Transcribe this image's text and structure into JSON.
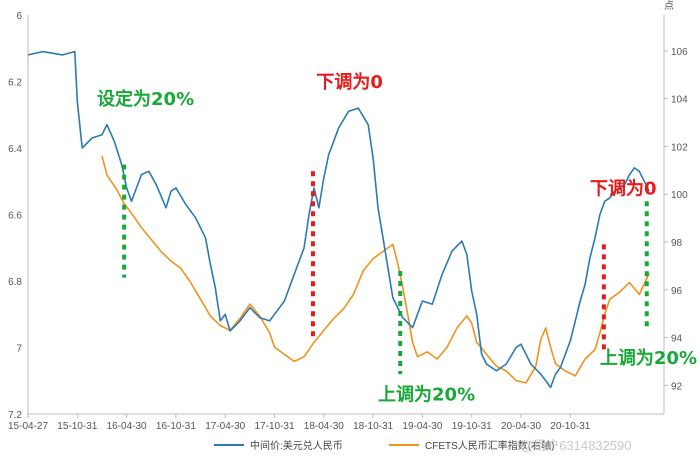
{
  "chart_data": {
    "type": "line",
    "y_left_ticks": [
      "6",
      "6.2",
      "6.4",
      "6.6",
      "6.8",
      "7",
      "7.2"
    ],
    "y_left_range": [
      6.0,
      7.2
    ],
    "y_left_inverted": true,
    "y_right_unit": "点",
    "y_right_ticks": [
      "106",
      "104",
      "102",
      "100",
      "98",
      "96",
      "94",
      "92"
    ],
    "y_right_range": [
      90.8,
      107.5
    ],
    "x_ticks": [
      "15-04-27",
      "15-10-31",
      "16-04-30",
      "16-10-31",
      "17-04-30",
      "17-10-31",
      "18-04-30",
      "18-10-31",
      "19-04-30",
      "19-10-31",
      "20-04-30",
      "20-10-31"
    ],
    "x_range": [
      0,
      12.9
    ],
    "grid": false,
    "legend_position": "bottom",
    "series": [
      {
        "name": "中间价:美元兑人民币",
        "axis": "left",
        "color": "#2c7ab0",
        "points": [
          [
            0,
            6.12
          ],
          [
            0.3,
            6.11
          ],
          [
            0.7,
            6.12
          ],
          [
            0.95,
            6.11
          ],
          [
            1.0,
            6.26
          ],
          [
            1.1,
            6.4
          ],
          [
            1.3,
            6.37
          ],
          [
            1.5,
            6.36
          ],
          [
            1.6,
            6.33
          ],
          [
            1.75,
            6.38
          ],
          [
            1.9,
            6.45
          ],
          [
            2.0,
            6.52
          ],
          [
            2.1,
            6.56
          ],
          [
            2.2,
            6.52
          ],
          [
            2.3,
            6.48
          ],
          [
            2.45,
            6.47
          ],
          [
            2.6,
            6.51
          ],
          [
            2.8,
            6.58
          ],
          [
            2.9,
            6.53
          ],
          [
            3.0,
            6.52
          ],
          [
            3.2,
            6.57
          ],
          [
            3.4,
            6.61
          ],
          [
            3.6,
            6.67
          ],
          [
            3.7,
            6.75
          ],
          [
            3.8,
            6.82
          ],
          [
            3.9,
            6.92
          ],
          [
            4.0,
            6.9
          ],
          [
            4.1,
            6.95
          ],
          [
            4.3,
            6.92
          ],
          [
            4.5,
            6.88
          ],
          [
            4.7,
            6.91
          ],
          [
            4.9,
            6.92
          ],
          [
            5.0,
            6.9
          ],
          [
            5.2,
            6.86
          ],
          [
            5.4,
            6.78
          ],
          [
            5.6,
            6.7
          ],
          [
            5.7,
            6.6
          ],
          [
            5.8,
            6.52
          ],
          [
            5.9,
            6.58
          ],
          [
            6.0,
            6.49
          ],
          [
            6.1,
            6.42
          ],
          [
            6.2,
            6.38
          ],
          [
            6.3,
            6.34
          ],
          [
            6.5,
            6.29
          ],
          [
            6.7,
            6.28
          ],
          [
            6.9,
            6.33
          ],
          [
            7.0,
            6.43
          ],
          [
            7.1,
            6.58
          ],
          [
            7.2,
            6.67
          ],
          [
            7.3,
            6.76
          ],
          [
            7.4,
            6.85
          ],
          [
            7.6,
            6.91
          ],
          [
            7.8,
            6.94
          ],
          [
            7.9,
            6.9
          ],
          [
            8.0,
            6.86
          ],
          [
            8.2,
            6.87
          ],
          [
            8.4,
            6.78
          ],
          [
            8.6,
            6.71
          ],
          [
            8.8,
            6.68
          ],
          [
            8.9,
            6.72
          ],
          [
            9.0,
            6.83
          ],
          [
            9.1,
            6.9
          ],
          [
            9.2,
            7.02
          ],
          [
            9.3,
            7.05
          ],
          [
            9.5,
            7.07
          ],
          [
            9.7,
            7.05
          ],
          [
            9.9,
            7.0
          ],
          [
            10.0,
            6.99
          ],
          [
            10.2,
            7.05
          ],
          [
            10.4,
            7.08
          ],
          [
            10.5,
            7.1
          ],
          [
            10.6,
            7.12
          ],
          [
            10.7,
            7.08
          ],
          [
            10.8,
            7.06
          ],
          [
            10.9,
            7.02
          ],
          [
            11.0,
            6.98
          ],
          [
            11.1,
            6.92
          ],
          [
            11.2,
            6.86
          ],
          [
            11.3,
            6.81
          ],
          [
            11.4,
            6.73
          ],
          [
            11.5,
            6.67
          ],
          [
            11.6,
            6.6
          ],
          [
            11.7,
            6.56
          ],
          [
            11.8,
            6.55
          ],
          [
            11.9,
            6.53
          ],
          [
            12.0,
            6.52
          ],
          [
            12.1,
            6.51
          ],
          [
            12.2,
            6.48
          ],
          [
            12.3,
            6.46
          ],
          [
            12.4,
            6.47
          ],
          [
            12.5,
            6.5
          ],
          [
            12.6,
            6.53
          ]
        ]
      },
      {
        "name": "CFETS人民币汇率指数(右轴)",
        "axis": "right",
        "color": "#f0921e",
        "points": [
          [
            1.5,
            101.6
          ],
          [
            1.6,
            100.8
          ],
          [
            1.8,
            100.2
          ],
          [
            1.95,
            99.6
          ],
          [
            2.1,
            99.2
          ],
          [
            2.3,
            98.6
          ],
          [
            2.5,
            98.1
          ],
          [
            2.7,
            97.6
          ],
          [
            2.9,
            97.2
          ],
          [
            3.1,
            96.9
          ],
          [
            3.3,
            96.3
          ],
          [
            3.5,
            95.6
          ],
          [
            3.7,
            94.9
          ],
          [
            3.9,
            94.5
          ],
          [
            4.1,
            94.3
          ],
          [
            4.3,
            94.8
          ],
          [
            4.5,
            95.4
          ],
          [
            4.7,
            94.9
          ],
          [
            4.9,
            94.2
          ],
          [
            5.0,
            93.6
          ],
          [
            5.2,
            93.3
          ],
          [
            5.4,
            93.0
          ],
          [
            5.6,
            93.2
          ],
          [
            5.8,
            93.8
          ],
          [
            6.0,
            94.3
          ],
          [
            6.2,
            94.8
          ],
          [
            6.4,
            95.2
          ],
          [
            6.6,
            95.8
          ],
          [
            6.8,
            96.8
          ],
          [
            7.0,
            97.3
          ],
          [
            7.2,
            97.6
          ],
          [
            7.4,
            97.9
          ],
          [
            7.5,
            97.1
          ],
          [
            7.6,
            96.1
          ],
          [
            7.7,
            95.0
          ],
          [
            7.8,
            93.8
          ],
          [
            7.9,
            93.2
          ],
          [
            8.1,
            93.4
          ],
          [
            8.3,
            93.1
          ],
          [
            8.5,
            93.6
          ],
          [
            8.7,
            94.4
          ],
          [
            8.9,
            94.9
          ],
          [
            9.0,
            94.6
          ],
          [
            9.1,
            93.8
          ],
          [
            9.3,
            93.3
          ],
          [
            9.5,
            92.8
          ],
          [
            9.7,
            92.6
          ],
          [
            9.9,
            92.2
          ],
          [
            10.1,
            92.1
          ],
          [
            10.3,
            92.8
          ],
          [
            10.4,
            93.9
          ],
          [
            10.5,
            94.4
          ],
          [
            10.6,
            93.6
          ],
          [
            10.7,
            92.9
          ],
          [
            10.9,
            92.6
          ],
          [
            11.1,
            92.4
          ],
          [
            11.3,
            93.1
          ],
          [
            11.5,
            93.5
          ],
          [
            11.6,
            94.2
          ],
          [
            11.7,
            95.0
          ],
          [
            11.8,
            95.6
          ],
          [
            12.0,
            95.9
          ],
          [
            12.2,
            96.3
          ],
          [
            12.4,
            95.8
          ],
          [
            12.6,
            96.7
          ]
        ]
      }
    ],
    "annotations": [
      {
        "text": "设定为20%",
        "color": "#1aa83a",
        "x": 1.4,
        "y_left": 6.27,
        "line_x": 1.95,
        "line_from": 6.45,
        "line_to": 6.79,
        "line_color": "#1aa83a"
      },
      {
        "text": "下调为0",
        "color": "#e61b1b",
        "x": 5.85,
        "y_left": 6.22,
        "line_x": 5.78,
        "line_from": 6.47,
        "line_to": 6.98,
        "line_color": "#e61b1b"
      },
      {
        "text": "上调为20%",
        "color": "#1aa83a",
        "x": 7.1,
        "y_left": 7.16,
        "line_x": 7.55,
        "line_from": 6.77,
        "line_to": 7.08,
        "line_color": "#1aa83a"
      },
      {
        "text": "下调为0",
        "color": "#e61b1b",
        "x": 11.4,
        "y_left": 6.54,
        "line_x": 11.68,
        "line_from": 6.69,
        "line_to": 7.02,
        "line_color": "#e61b1b"
      },
      {
        "text": "上调为20%",
        "color": "#1aa83a",
        "x": 11.6,
        "y_left": 7.05,
        "line_x": 12.55,
        "line_from": 6.56,
        "line_to": 6.94,
        "line_color": "#1aa83a"
      }
    ]
  },
  "watermark": "@用户6314832590"
}
